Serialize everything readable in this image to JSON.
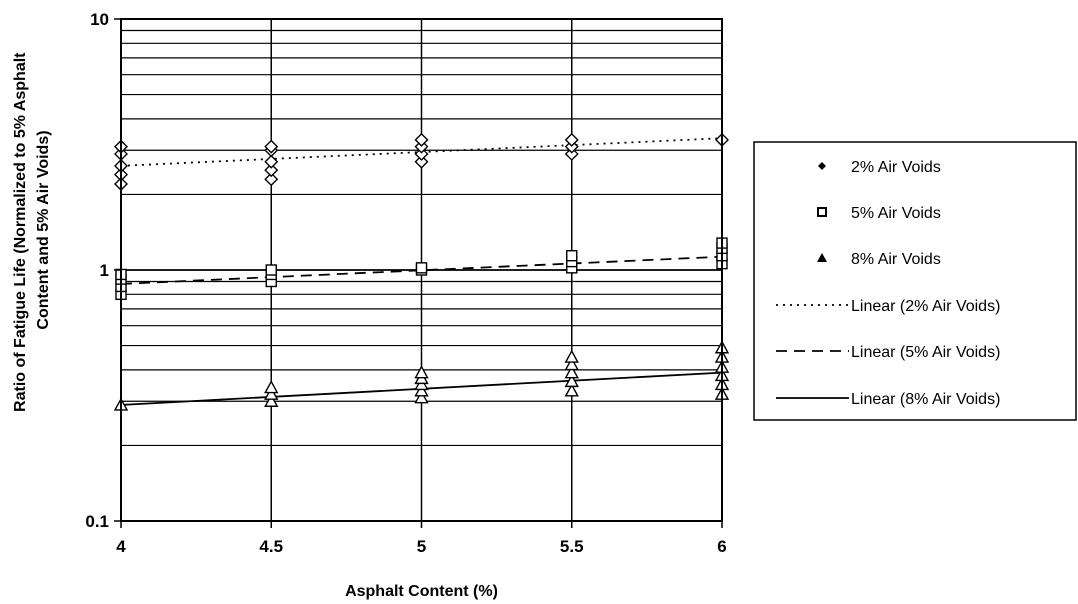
{
  "chart_data": {
    "type": "scatter",
    "title": "",
    "xlabel": "Asphalt Content (%)",
    "ylabel_lines": [
      "Ratio of Fatigue Life (Normalized to 5% Asphalt",
      "Content and 5% Air Voids)"
    ],
    "xlim": [
      4,
      6
    ],
    "ylim": [
      0.1,
      10
    ],
    "yscale": "log",
    "grid": true,
    "legend_position": "right",
    "x_ticks": [
      4,
      4.5,
      5,
      5.5,
      6
    ],
    "x_tick_labels": [
      "4",
      "4.5",
      "5",
      "5.5",
      "6"
    ],
    "y_ticks": [
      0.1,
      1,
      10
    ],
    "y_tick_labels": [
      "0.1",
      "1",
      "10"
    ],
    "series": [
      {
        "name": "2% Air Voids",
        "marker": "diamond",
        "points": [
          [
            4,
            2.2
          ],
          [
            4,
            2.4
          ],
          [
            4,
            2.6
          ],
          [
            4,
            2.9
          ],
          [
            4,
            3.1
          ],
          [
            4.5,
            2.3
          ],
          [
            4.5,
            2.5
          ],
          [
            4.5,
            2.7
          ],
          [
            4.5,
            3.0
          ],
          [
            4.5,
            3.1
          ],
          [
            5,
            2.7
          ],
          [
            5,
            2.9
          ],
          [
            5,
            3.1
          ],
          [
            5,
            3.3
          ],
          [
            5.5,
            2.9
          ],
          [
            5.5,
            3.1
          ],
          [
            5.5,
            3.3
          ],
          [
            6,
            3.3
          ]
        ]
      },
      {
        "name": "5% Air Voids",
        "marker": "square",
        "points": [
          [
            4,
            0.8
          ],
          [
            4,
            0.86
          ],
          [
            4,
            0.92
          ],
          [
            4,
            0.96
          ],
          [
            4.5,
            0.9
          ],
          [
            4.5,
            0.96
          ],
          [
            4.5,
            1.0
          ],
          [
            5,
            1.0
          ],
          [
            5,
            1.02
          ],
          [
            5.5,
            1.02
          ],
          [
            5.5,
            1.08
          ],
          [
            5.5,
            1.14
          ],
          [
            6,
            1.06
          ],
          [
            6,
            1.14
          ],
          [
            6,
            1.22
          ],
          [
            6,
            1.28
          ]
        ]
      },
      {
        "name": "8% Air Voids",
        "marker": "triangle",
        "points": [
          [
            4,
            0.29
          ],
          [
            4.5,
            0.3
          ],
          [
            4.5,
            0.32
          ],
          [
            4.5,
            0.34
          ],
          [
            5,
            0.31
          ],
          [
            5,
            0.33
          ],
          [
            5,
            0.35
          ],
          [
            5,
            0.37
          ],
          [
            5,
            0.39
          ],
          [
            5.5,
            0.33
          ],
          [
            5.5,
            0.36
          ],
          [
            5.5,
            0.39
          ],
          [
            5.5,
            0.42
          ],
          [
            5.5,
            0.45
          ],
          [
            6,
            0.32
          ],
          [
            6,
            0.35
          ],
          [
            6,
            0.38
          ],
          [
            6,
            0.41
          ],
          [
            6,
            0.45
          ],
          [
            6,
            0.49
          ]
        ]
      }
    ],
    "trendlines": [
      {
        "name": "Linear (2% Air Voids)",
        "style": "dotted",
        "y_at_xmin": 2.6,
        "y_at_xmax": 3.35
      },
      {
        "name": "Linear (5% Air Voids)",
        "style": "dashed",
        "y_at_xmin": 0.88,
        "y_at_xmax": 1.13
      },
      {
        "name": "Linear (8% Air Voids)",
        "style": "solid",
        "y_at_xmin": 0.29,
        "y_at_xmax": 0.39
      }
    ]
  }
}
